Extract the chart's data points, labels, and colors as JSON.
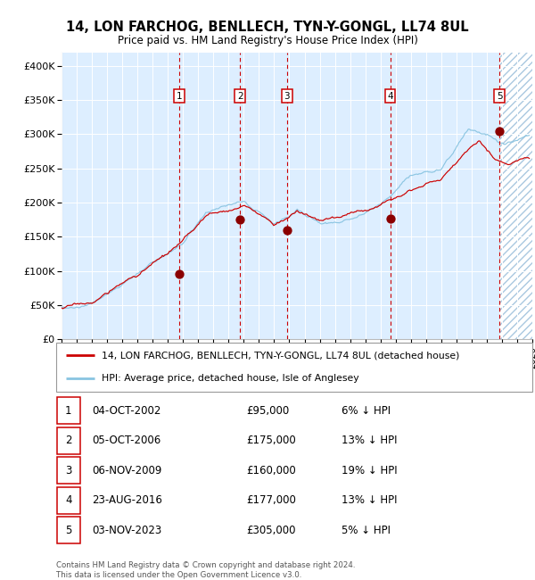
{
  "title": "14, LON FARCHOG, BENLLECH, TYN-Y-GONGL, LL74 8UL",
  "subtitle": "Price paid vs. HM Land Registry's House Price Index (HPI)",
  "hpi_color": "#89c4e1",
  "price_color": "#cc0000",
  "sale_marker_color": "#8b0000",
  "bg_color": "#ddeeff",
  "ylim": [
    0,
    420000
  ],
  "yticks": [
    0,
    50000,
    100000,
    150000,
    200000,
    250000,
    300000,
    350000,
    400000
  ],
  "ytick_labels": [
    "£0",
    "£50K",
    "£100K",
    "£150K",
    "£200K",
    "£250K",
    "£300K",
    "£350K",
    "£400K"
  ],
  "sale_dates_x": [
    2002.75,
    2006.75,
    2009.83,
    2016.64,
    2023.83
  ],
  "sale_prices_y": [
    95000,
    175000,
    160000,
    177000,
    305000
  ],
  "sale_labels": [
    "1",
    "2",
    "3",
    "4",
    "5"
  ],
  "legend_entries": [
    "14, LON FARCHOG, BENLLECH, TYN-Y-GONGL, LL74 8UL (detached house)",
    "HPI: Average price, detached house, Isle of Anglesey"
  ],
  "table_rows": [
    [
      "1",
      "04-OCT-2002",
      "£95,000",
      "6% ↓ HPI"
    ],
    [
      "2",
      "05-OCT-2006",
      "£175,000",
      "13% ↓ HPI"
    ],
    [
      "3",
      "06-NOV-2009",
      "£160,000",
      "19% ↓ HPI"
    ],
    [
      "4",
      "23-AUG-2016",
      "£177,000",
      "13% ↓ HPI"
    ],
    [
      "5",
      "03-NOV-2023",
      "£305,000",
      "5% ↓ HPI"
    ]
  ],
  "footnote": "Contains HM Land Registry data © Crown copyright and database right 2024.\nThis data is licensed under the Open Government Licence v3.0.",
  "xmin": 1995.0,
  "xmax": 2026.0
}
